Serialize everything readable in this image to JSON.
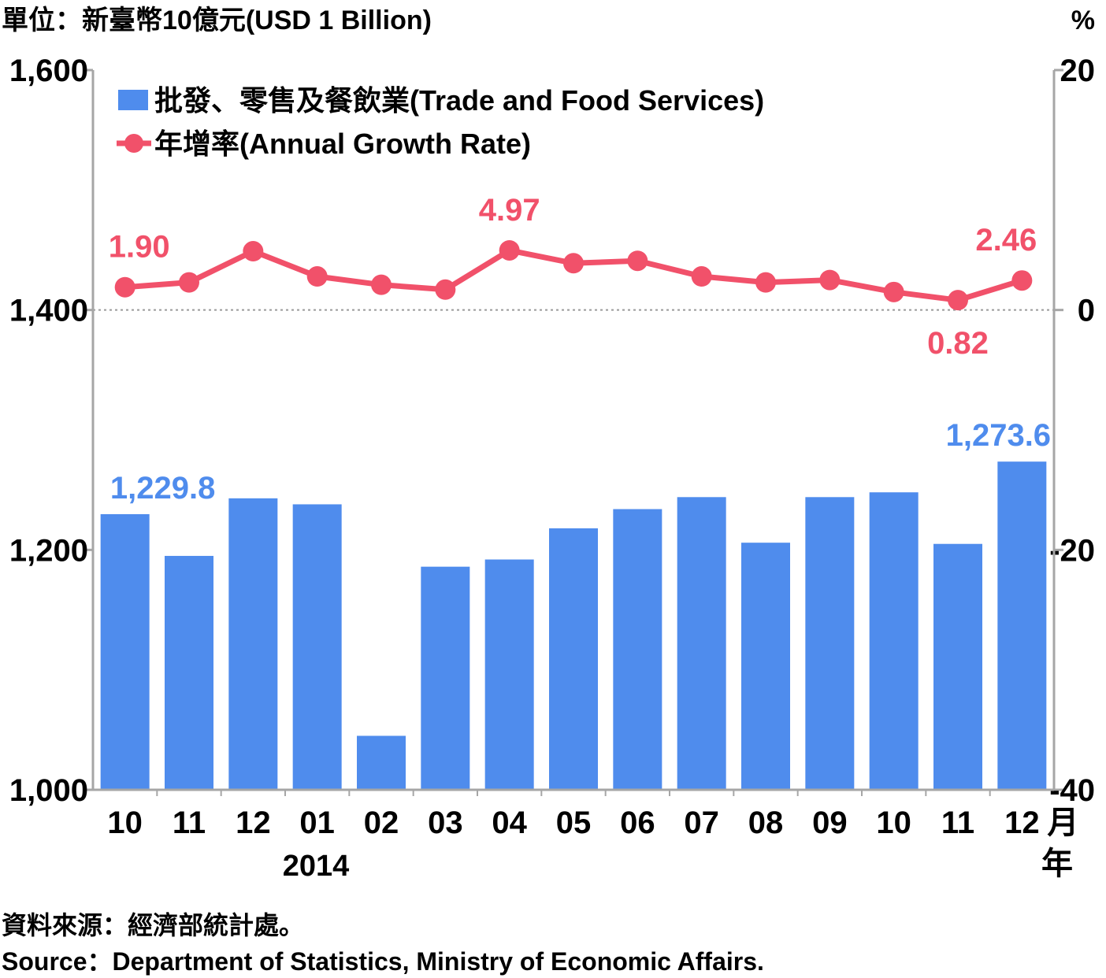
{
  "chart_data": {
    "type": "bar+line",
    "unit_left": "單位：新臺幣10億元(USD 1 Billion)",
    "unit_right": "%",
    "categories": [
      "10",
      "11",
      "12",
      "01",
      "02",
      "03",
      "04",
      "05",
      "06",
      "07",
      "08",
      "09",
      "10",
      "11",
      "12"
    ],
    "month_suffix": "月",
    "year_suffix": "年",
    "year_label": "2014",
    "left_axis": {
      "ylim": [
        1000,
        1600
      ],
      "ticks": [
        "1,000",
        "1,200",
        "1,400",
        "1,600"
      ]
    },
    "right_axis": {
      "ylim": [
        -40,
        20
      ],
      "ticks": [
        "-40",
        "-20",
        "0",
        "20"
      ]
    },
    "series": [
      {
        "name": "批發、零售及餐飲業(Trade and Food Services)",
        "type": "bar",
        "color": "#4f8ced",
        "values": [
          1229.8,
          1195,
          1243,
          1238,
          1045,
          1186,
          1192,
          1218,
          1234,
          1244,
          1206,
          1244,
          1248,
          1205,
          1273.6
        ]
      },
      {
        "name": "年增率(Annual Growth Rate)",
        "type": "line",
        "color": "#f1516a",
        "values": [
          1.9,
          2.3,
          4.9,
          2.8,
          2.1,
          1.7,
          4.97,
          3.9,
          4.1,
          2.8,
          2.3,
          2.5,
          1.5,
          0.82,
          2.46
        ]
      }
    ],
    "bar_labels": [
      {
        "index": 0,
        "text": "1,229.8"
      },
      {
        "index": 14,
        "text": "1,273.6"
      }
    ],
    "line_labels": [
      {
        "index": 0,
        "text": "1.90",
        "pos": "above"
      },
      {
        "index": 6,
        "text": "4.97",
        "pos": "above"
      },
      {
        "index": 13,
        "text": "0.82",
        "pos": "below"
      },
      {
        "index": 14,
        "text": "2.46",
        "pos": "above"
      }
    ]
  },
  "footer": {
    "source_zh": "資料來源：經濟部統計處。",
    "source_en": "Source：Department of Statistics, Ministry of Economic Affairs."
  }
}
